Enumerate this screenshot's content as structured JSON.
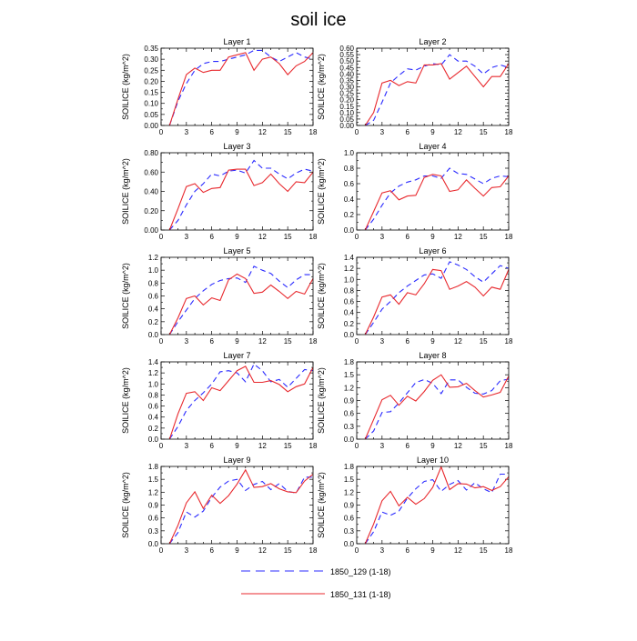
{
  "title": "soil ice",
  "ylabel": "SOILICE  (kg/m^2)",
  "xticks": [
    "0",
    "3",
    "6",
    "9",
    "12",
    "15",
    "18"
  ],
  "legend": [
    {
      "label": "1850_129 (1-18)",
      "color": "#2a2aff",
      "style": "dashed"
    },
    {
      "label": "1850_131 (1-18)",
      "color": "#e8282d",
      "style": "solid"
    }
  ],
  "chart_data": [
    {
      "type": "line",
      "title": "Layer 1",
      "x": [
        1,
        2,
        3,
        4,
        5,
        6,
        7,
        8,
        9,
        10,
        11,
        12,
        13,
        14,
        15,
        16,
        17,
        18
      ],
      "ylim": [
        0,
        0.35
      ],
      "yticks": [
        "0.00",
        "0.05",
        "0.10",
        "0.15",
        "0.20",
        "0.25",
        "0.30",
        "0.35"
      ],
      "series": [
        {
          "name": "1850_129 (1-18)",
          "values": [
            0.0,
            0.11,
            0.19,
            0.25,
            0.28,
            0.29,
            0.29,
            0.3,
            0.31,
            0.32,
            0.34,
            0.34,
            0.31,
            0.29,
            0.31,
            0.33,
            0.31,
            0.3
          ]
        },
        {
          "name": "1850_131 (1-18)",
          "values": [
            0.0,
            0.12,
            0.23,
            0.26,
            0.24,
            0.25,
            0.25,
            0.31,
            0.32,
            0.33,
            0.25,
            0.3,
            0.31,
            0.28,
            0.23,
            0.27,
            0.29,
            0.33
          ]
        }
      ]
    },
    {
      "type": "line",
      "title": "Layer 2",
      "x": [
        1,
        2,
        3,
        4,
        5,
        6,
        7,
        8,
        9,
        10,
        11,
        12,
        13,
        14,
        15,
        16,
        17,
        18
      ],
      "ylim": [
        0,
        0.6
      ],
      "yticks": [
        "0.00",
        "0.05",
        "0.10",
        "0.15",
        "0.20",
        "0.25",
        "0.30",
        "0.35",
        "0.40",
        "0.45",
        "0.50",
        "0.55",
        "0.60"
      ],
      "series": [
        {
          "name": "1850_129 (1-18)",
          "values": [
            0.0,
            0.04,
            0.18,
            0.33,
            0.39,
            0.44,
            0.43,
            0.46,
            0.48,
            0.47,
            0.55,
            0.5,
            0.5,
            0.46,
            0.4,
            0.45,
            0.47,
            0.45
          ]
        },
        {
          "name": "1850_131 (1-18)",
          "values": [
            0.0,
            0.1,
            0.33,
            0.35,
            0.31,
            0.34,
            0.33,
            0.47,
            0.47,
            0.48,
            0.36,
            0.41,
            0.46,
            0.38,
            0.3,
            0.38,
            0.38,
            0.48
          ]
        }
      ]
    },
    {
      "type": "line",
      "title": "Layer 3",
      "x": [
        1,
        2,
        3,
        4,
        5,
        6,
        7,
        8,
        9,
        10,
        11,
        12,
        13,
        14,
        15,
        16,
        17,
        18
      ],
      "ylim": [
        0,
        0.8
      ],
      "yticks": [
        "0.00",
        "0.20",
        "0.40",
        "0.60",
        "0.80"
      ],
      "series": [
        {
          "name": "1850_129 (1-18)",
          "values": [
            0.0,
            0.1,
            0.26,
            0.4,
            0.48,
            0.58,
            0.56,
            0.61,
            0.62,
            0.59,
            0.72,
            0.64,
            0.64,
            0.58,
            0.53,
            0.59,
            0.63,
            0.61
          ]
        },
        {
          "name": "1850_131 (1-18)",
          "values": [
            0.0,
            0.22,
            0.45,
            0.48,
            0.39,
            0.43,
            0.44,
            0.62,
            0.63,
            0.63,
            0.46,
            0.49,
            0.58,
            0.48,
            0.4,
            0.5,
            0.49,
            0.6
          ]
        }
      ]
    },
    {
      "type": "line",
      "title": "Layer 4",
      "x": [
        1,
        2,
        3,
        4,
        5,
        6,
        7,
        8,
        9,
        10,
        11,
        12,
        13,
        14,
        15,
        16,
        17,
        18
      ],
      "ylim": [
        0,
        1.0
      ],
      "yticks": [
        "0.0",
        "0.2",
        "0.4",
        "0.6",
        "0.8",
        "1.0"
      ],
      "series": [
        {
          "name": "1850_129 (1-18)",
          "values": [
            0.0,
            0.14,
            0.32,
            0.48,
            0.57,
            0.62,
            0.65,
            0.7,
            0.7,
            0.67,
            0.8,
            0.73,
            0.72,
            0.66,
            0.6,
            0.67,
            0.7,
            0.69
          ]
        },
        {
          "name": "1850_131 (1-18)",
          "values": [
            0.0,
            0.24,
            0.48,
            0.51,
            0.39,
            0.44,
            0.45,
            0.68,
            0.72,
            0.7,
            0.5,
            0.52,
            0.65,
            0.54,
            0.44,
            0.55,
            0.56,
            0.7
          ]
        }
      ]
    },
    {
      "type": "line",
      "title": "Layer 5",
      "x": [
        1,
        2,
        3,
        4,
        5,
        6,
        7,
        8,
        9,
        10,
        11,
        12,
        13,
        14,
        15,
        16,
        17,
        18
      ],
      "ylim": [
        0,
        1.2
      ],
      "yticks": [
        "0.0",
        "0.2",
        "0.4",
        "0.6",
        "0.8",
        "1.0",
        "1.2"
      ],
      "series": [
        {
          "name": "1850_129 (1-18)",
          "values": [
            0.0,
            0.2,
            0.38,
            0.56,
            0.68,
            0.78,
            0.84,
            0.87,
            0.88,
            0.81,
            1.06,
            1.0,
            0.95,
            0.83,
            0.73,
            0.85,
            0.93,
            0.93
          ]
        },
        {
          "name": "1850_131 (1-18)",
          "values": [
            0.0,
            0.26,
            0.56,
            0.6,
            0.46,
            0.57,
            0.53,
            0.85,
            0.94,
            0.87,
            0.64,
            0.66,
            0.77,
            0.67,
            0.56,
            0.67,
            0.63,
            0.87
          ]
        }
      ]
    },
    {
      "type": "line",
      "title": "Layer 6",
      "x": [
        1,
        2,
        3,
        4,
        5,
        6,
        7,
        8,
        9,
        10,
        11,
        12,
        13,
        14,
        15,
        16,
        17,
        18
      ],
      "ylim": [
        0,
        1.4
      ],
      "yticks": [
        "0.0",
        "0.2",
        "0.4",
        "0.6",
        "0.8",
        "1.0",
        "1.2",
        "1.4"
      ],
      "series": [
        {
          "name": "1850_129 (1-18)",
          "values": [
            0.0,
            0.22,
            0.46,
            0.6,
            0.76,
            0.88,
            0.98,
            1.08,
            1.1,
            1.02,
            1.32,
            1.26,
            1.18,
            1.05,
            0.95,
            1.1,
            1.25,
            1.2
          ]
        },
        {
          "name": "1850_131 (1-18)",
          "values": [
            0.0,
            0.32,
            0.68,
            0.72,
            0.55,
            0.76,
            0.72,
            0.92,
            1.18,
            1.16,
            0.82,
            0.88,
            0.96,
            0.86,
            0.7,
            0.86,
            0.82,
            1.18
          ]
        }
      ]
    },
    {
      "type": "line",
      "title": "Layer 7",
      "x": [
        1,
        2,
        3,
        4,
        5,
        6,
        7,
        8,
        9,
        10,
        11,
        12,
        13,
        14,
        15,
        16,
        17,
        18
      ],
      "ylim": [
        0,
        1.4
      ],
      "yticks": [
        "0.0",
        "0.2",
        "0.4",
        "0.6",
        "0.8",
        "1.0",
        "1.2",
        "1.4"
      ],
      "series": [
        {
          "name": "1850_129 (1-18)",
          "values": [
            0.0,
            0.23,
            0.52,
            0.7,
            0.84,
            1.0,
            1.22,
            1.24,
            1.2,
            1.04,
            1.36,
            1.24,
            1.04,
            1.08,
            0.94,
            1.1,
            1.26,
            1.24
          ]
        },
        {
          "name": "1850_131 (1-18)",
          "values": [
            0.0,
            0.46,
            0.83,
            0.86,
            0.7,
            0.93,
            0.88,
            1.06,
            1.24,
            1.32,
            1.03,
            1.03,
            1.06,
            0.99,
            0.86,
            0.95,
            1.0,
            1.3
          ]
        }
      ]
    },
    {
      "type": "line",
      "title": "Layer 8",
      "x": [
        1,
        2,
        3,
        4,
        5,
        6,
        7,
        8,
        9,
        10,
        11,
        12,
        13,
        14,
        15,
        16,
        17,
        18
      ],
      "ylim": [
        0,
        1.8
      ],
      "yticks": [
        "0.0",
        "0.3",
        "0.6",
        "0.9",
        "1.2",
        "1.5",
        "1.8"
      ],
      "series": [
        {
          "name": "1850_129 (1-18)",
          "values": [
            0.0,
            0.19,
            0.62,
            0.64,
            0.84,
            1.08,
            1.32,
            1.39,
            1.3,
            1.06,
            1.38,
            1.38,
            1.21,
            1.07,
            1.05,
            1.13,
            1.36,
            1.4
          ]
        },
        {
          "name": "1850_131 (1-18)",
          "values": [
            0.0,
            0.46,
            0.92,
            1.02,
            0.79,
            1.0,
            0.89,
            1.11,
            1.37,
            1.5,
            1.21,
            1.22,
            1.3,
            1.13,
            0.98,
            1.03,
            1.09,
            1.47
          ]
        }
      ]
    },
    {
      "type": "line",
      "title": "Layer 9",
      "x": [
        1,
        2,
        3,
        4,
        5,
        6,
        7,
        8,
        9,
        10,
        11,
        12,
        13,
        14,
        15,
        16,
        17,
        18
      ],
      "ylim": [
        0,
        1.8
      ],
      "yticks": [
        "0.0",
        "0.3",
        "0.6",
        "0.9",
        "1.2",
        "1.5",
        "1.8"
      ],
      "series": [
        {
          "name": "1850_129 (1-18)",
          "values": [
            0.0,
            0.26,
            0.74,
            0.62,
            0.76,
            1.08,
            1.32,
            1.46,
            1.5,
            1.24,
            1.38,
            1.45,
            1.26,
            1.4,
            1.22,
            1.18,
            1.55,
            1.55
          ]
        },
        {
          "name": "1850_131 (1-18)",
          "values": [
            0.0,
            0.43,
            0.95,
            1.21,
            0.82,
            1.13,
            0.94,
            1.12,
            1.39,
            1.72,
            1.31,
            1.33,
            1.4,
            1.28,
            1.21,
            1.19,
            1.46,
            1.62
          ]
        }
      ]
    },
    {
      "type": "line",
      "title": "Layer 10",
      "x": [
        1,
        2,
        3,
        4,
        5,
        6,
        7,
        8,
        9,
        10,
        11,
        12,
        13,
        14,
        15,
        16,
        17,
        18
      ],
      "ylim": [
        0,
        1.8
      ],
      "yticks": [
        "0.0",
        "0.3",
        "0.6",
        "0.9",
        "1.2",
        "1.5",
        "1.8"
      ],
      "series": [
        {
          "name": "1850_129 (1-18)",
          "values": [
            0.0,
            0.28,
            0.74,
            0.66,
            0.76,
            1.06,
            1.28,
            1.45,
            1.49,
            1.22,
            1.38,
            1.47,
            1.25,
            1.42,
            1.28,
            1.19,
            1.62,
            1.62
          ]
        },
        {
          "name": "1850_131 (1-18)",
          "values": [
            0.0,
            0.46,
            1.0,
            1.22,
            0.88,
            1.08,
            0.92,
            1.05,
            1.31,
            1.79,
            1.26,
            1.4,
            1.39,
            1.3,
            1.33,
            1.24,
            1.33,
            1.56
          ]
        }
      ]
    }
  ]
}
